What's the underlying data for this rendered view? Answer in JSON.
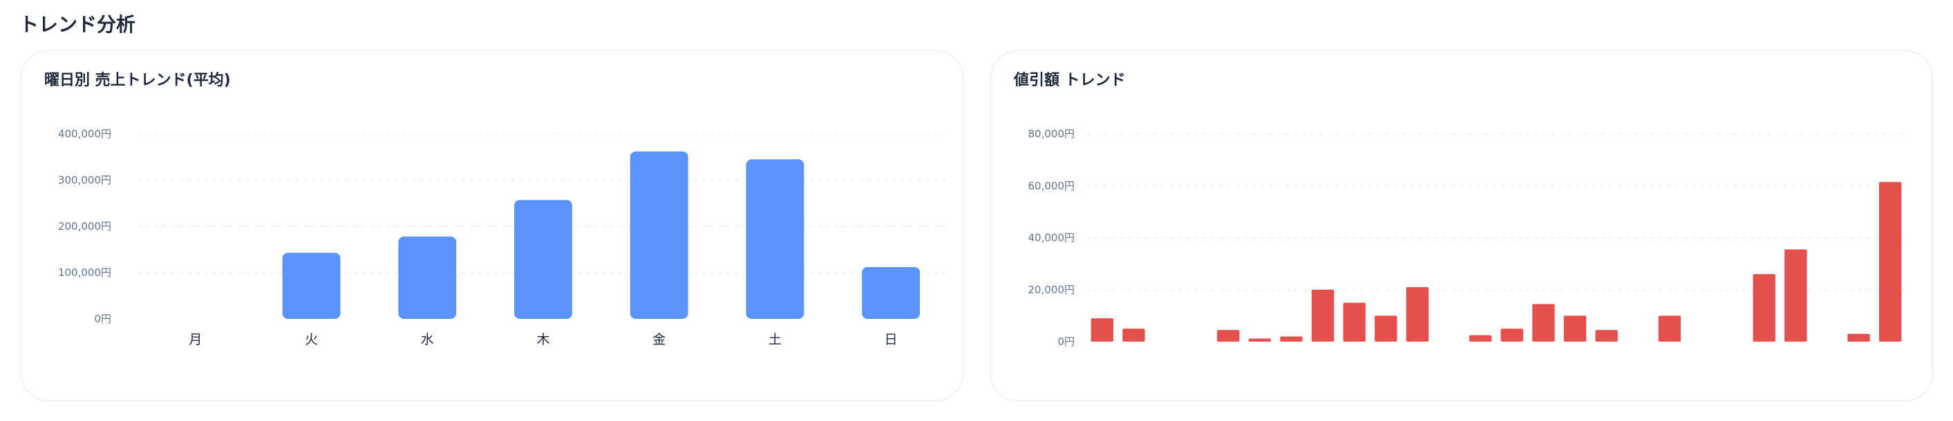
{
  "page": {
    "title": "トレンド分析"
  },
  "charts": {
    "weekday": {
      "title": "曜日別 売上トレンド(平均)"
    },
    "discount": {
      "title": "値引額 トレンド"
    }
  },
  "chart_data": [
    {
      "type": "bar",
      "title": "曜日別 売上トレンド(平均)",
      "categories": [
        "月",
        "火",
        "水",
        "木",
        "金",
        "土",
        "日"
      ],
      "values": [
        0,
        143000,
        178000,
        257000,
        362000,
        345000,
        112000
      ],
      "ylim": [
        0,
        400000
      ],
      "yticks": [
        0,
        100000,
        200000,
        300000,
        400000
      ],
      "ytick_labels": [
        "0円",
        "100,000円",
        "200,000円",
        "300,000円",
        "400,000円"
      ],
      "grid": true,
      "color": "#5b94f9"
    },
    {
      "type": "bar",
      "title": "値引額 トレンド",
      "values": [
        9000,
        5000,
        0,
        0,
        4500,
        1200,
        2000,
        20000,
        15000,
        10000,
        21000,
        0,
        2500,
        5000,
        14500,
        10000,
        4500,
        0,
        10000,
        0,
        0,
        26000,
        35500,
        0,
        3000,
        61500
      ],
      "ylim": [
        0,
        80000
      ],
      "yticks": [
        0,
        20000,
        40000,
        60000,
        80000
      ],
      "ytick_labels": [
        "0円",
        "20,000円",
        "40,000円",
        "60,000円",
        "80,000円"
      ],
      "grid": true,
      "color": "#e5504d"
    }
  ]
}
